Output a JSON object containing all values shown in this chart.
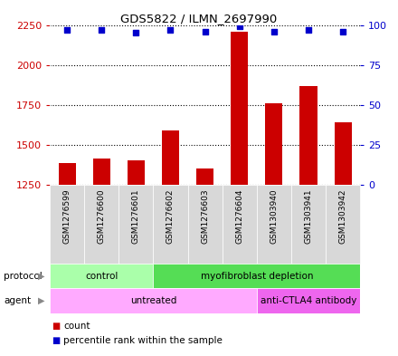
{
  "title": "GDS5822 / ILMN_2697990",
  "samples": [
    "GSM1276599",
    "GSM1276600",
    "GSM1276601",
    "GSM1276602",
    "GSM1276603",
    "GSM1276604",
    "GSM1303940",
    "GSM1303941",
    "GSM1303942"
  ],
  "counts": [
    1385,
    1415,
    1405,
    1590,
    1355,
    2205,
    1760,
    1870,
    1640
  ],
  "percentile_ranks": [
    97,
    97,
    95,
    97,
    96,
    99,
    96,
    97,
    96
  ],
  "ylim_left": [
    1250,
    2250
  ],
  "ylim_right": [
    0,
    100
  ],
  "yticks_left": [
    1250,
    1500,
    1750,
    2000,
    2250
  ],
  "yticks_right": [
    0,
    25,
    50,
    75,
    100
  ],
  "bar_color": "#cc0000",
  "dot_color": "#0000cc",
  "bar_width": 0.5,
  "protocol_groups": [
    {
      "label": "control",
      "start": 0,
      "end": 3,
      "color": "#aaffaa"
    },
    {
      "label": "myofibroblast depletion",
      "start": 3,
      "end": 9,
      "color": "#55dd55"
    }
  ],
  "agent_groups": [
    {
      "label": "untreated",
      "start": 0,
      "end": 6,
      "color": "#ffaaff"
    },
    {
      "label": "anti-CTLA4 antibody",
      "start": 6,
      "end": 9,
      "color": "#ee66ee"
    }
  ],
  "legend_count_label": "count",
  "legend_pct_label": "percentile rank within the sample",
  "left_tick_color": "#cc0000",
  "right_tick_color": "#0000cc",
  "plot_bg_color": "#ffffff",
  "sample_cell_bg": "#d8d8d8",
  "fig_bg": "#ffffff"
}
